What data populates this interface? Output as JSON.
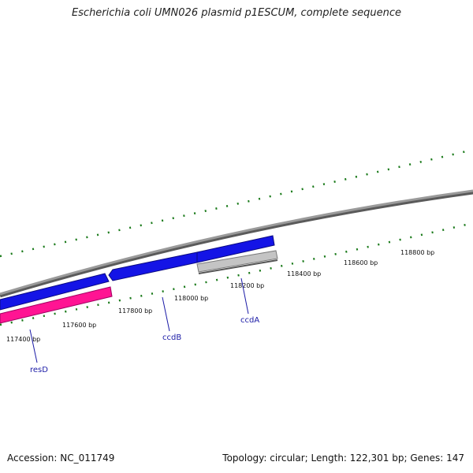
{
  "title": "Escherichia coli UMN026 plasmid p1ESCUM, complete sequence",
  "footer": {
    "accession": "Accession: NC_011749",
    "summary": "Topology: circular; Length: 122,301 bp; Genes: 147"
  },
  "ticks": [
    {
      "label": "117400 bp"
    },
    {
      "label": "117600 bp"
    },
    {
      "label": "117800 bp"
    },
    {
      "label": "118000 bp"
    },
    {
      "label": "118200 bp"
    },
    {
      "label": "118400 bp"
    },
    {
      "label": "118600 bp"
    },
    {
      "label": "118800 bp"
    }
  ],
  "genes": [
    {
      "name": "resD",
      "color": "#ff1493"
    },
    {
      "name": "ccdB",
      "color": "#1414e6"
    },
    {
      "name": "ccdA",
      "color": "#bbbbbb"
    }
  ],
  "colors": {
    "backbone": "#8a8a8a",
    "tick": "#1a7a1a",
    "label_line": "#1a1aa6",
    "other_gene": "#1414e6"
  }
}
